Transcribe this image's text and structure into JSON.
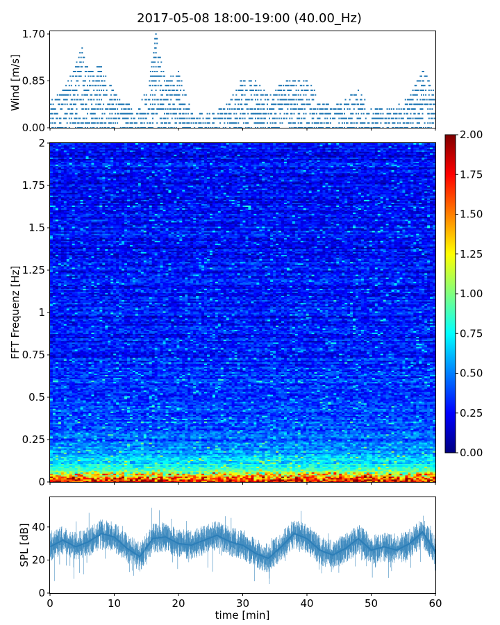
{
  "figure_title": "2017-05-08 18:00-19:00 (40.00_Hz)",
  "colors": {
    "series": "#1f77b4",
    "colormap": "jet",
    "colormap_stops": [
      "#00007f",
      "#0000ff",
      "#007fff",
      "#00ffff",
      "#7fff7f",
      "#ffff00",
      "#ff7f00",
      "#ff0000",
      "#7f0000"
    ]
  },
  "chart_data": [
    {
      "type": "scatter",
      "panel": "wind",
      "title": "",
      "xlabel": "",
      "ylabel": "Wind [m/s]",
      "xlim": [
        0,
        60
      ],
      "ylim": [
        0,
        1.75
      ],
      "x_ticks": [
        0,
        10,
        20,
        30,
        40,
        50,
        60
      ],
      "y_ticks": [
        0.0,
        0.85,
        1.7
      ],
      "y_tick_labels": [
        "0.00",
        "0.85",
        "1.70"
      ],
      "step": 0.085,
      "series": [
        {
          "x": [
            0,
            2,
            4,
            5,
            6,
            8,
            10,
            12,
            14,
            15.5,
            16.5,
            18,
            20,
            22,
            24,
            26,
            28,
            30,
            32,
            34,
            36,
            38,
            40,
            42,
            44,
            46,
            48,
            50,
            52,
            54,
            56,
            58,
            60
          ],
          "y": [
            0.45,
            0.65,
            1.1,
            1.45,
            1.0,
            1.1,
            0.6,
            0.4,
            0.35,
            0.95,
            1.7,
            0.8,
            1.05,
            0.3,
            0.2,
            0.3,
            0.45,
            0.9,
            0.85,
            0.55,
            0.8,
            0.85,
            0.9,
            0.45,
            0.35,
            0.5,
            0.65,
            0.3,
            0.3,
            0.35,
            0.55,
            1.05,
            0.6
          ]
        }
      ]
    },
    {
      "type": "heatmap",
      "panel": "spectrogram",
      "title": "",
      "xlabel": "",
      "ylabel": "FFT Frequenz [Hz]",
      "xlim": [
        0,
        60
      ],
      "ylim": [
        0,
        2
      ],
      "y_ticks": [
        0,
        0.25,
        0.5,
        0.75,
        1,
        1.25,
        1.5,
        1.75,
        2
      ],
      "y_tick_labels": [
        "0",
        "0.25",
        "0.5",
        "0.75",
        "1",
        "1.25",
        "1.5",
        "1.75",
        "2"
      ],
      "colorbar": {
        "range": [
          0,
          2
        ],
        "ticks": [
          "0.00",
          "0.25",
          "0.50",
          "0.75",
          "1.00",
          "1.25",
          "1.50",
          "1.75",
          "2.00"
        ]
      },
      "profile": {
        "freq": [
          0,
          0.02,
          0.05,
          0.08,
          0.12,
          0.18,
          0.25,
          0.35,
          0.5,
          0.75,
          1.0,
          1.5,
          2.0
        ],
        "level": [
          1.85,
          1.55,
          1.1,
          0.85,
          0.7,
          0.55,
          0.45,
          0.4,
          0.35,
          0.3,
          0.28,
          0.26,
          0.26
        ]
      }
    },
    {
      "type": "line",
      "panel": "spl",
      "title": "",
      "xlabel": "time [min]",
      "ylabel": "SPL [dB]",
      "xlim": [
        0,
        60
      ],
      "ylim": [
        0,
        58
      ],
      "x_ticks": [
        0,
        10,
        20,
        30,
        40,
        50,
        60
      ],
      "y_ticks": [
        0,
        20,
        40
      ],
      "series": [
        {
          "x": [
            0,
            2,
            4,
            6,
            8,
            10,
            12,
            14,
            16,
            18,
            20,
            22,
            24,
            26,
            28,
            30,
            32,
            34,
            36,
            38,
            40,
            42,
            44,
            46,
            48,
            50,
            52,
            54,
            56,
            58,
            60
          ],
          "y": [
            28,
            32,
            28,
            31,
            36,
            34,
            27,
            22,
            33,
            34,
            30,
            29,
            32,
            35,
            31,
            29,
            24,
            21,
            28,
            36,
            33,
            26,
            23,
            27,
            33,
            26,
            28,
            26,
            30,
            37,
            25
          ],
          "spread": 9
        }
      ]
    }
  ]
}
